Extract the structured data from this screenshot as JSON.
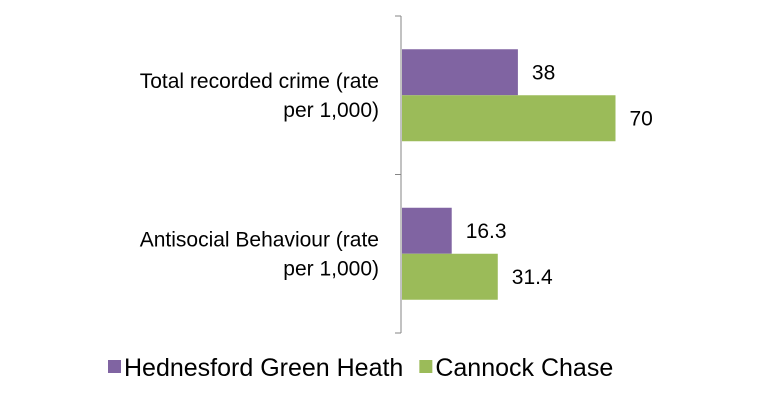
{
  "chart_data": {
    "type": "bar",
    "orientation": "horizontal",
    "title": "",
    "xlabel": "",
    "ylabel": "",
    "xlim": [
      0,
      100
    ],
    "categories": [
      "Total recorded crime (rate per 1,000)",
      "Antisocial Behaviour (rate per 1,000)"
    ],
    "category_label_lines": [
      [
        "Total recorded crime (rate",
        "per 1,000)"
      ],
      [
        "Antisocial Behaviour (rate",
        "per 1,000)"
      ]
    ],
    "series": [
      {
        "name": "Hednesford Green Heath",
        "color": "#8064A2",
        "values": [
          38,
          16.3
        ],
        "labels": [
          "38",
          "16.3"
        ]
      },
      {
        "name": "Cannock Chase",
        "color": "#9BBB59",
        "values": [
          70,
          31.4
        ],
        "labels": [
          "70",
          "31.4"
        ]
      }
    ],
    "grid": false,
    "data_labels": true,
    "legend_position": "bottom"
  }
}
